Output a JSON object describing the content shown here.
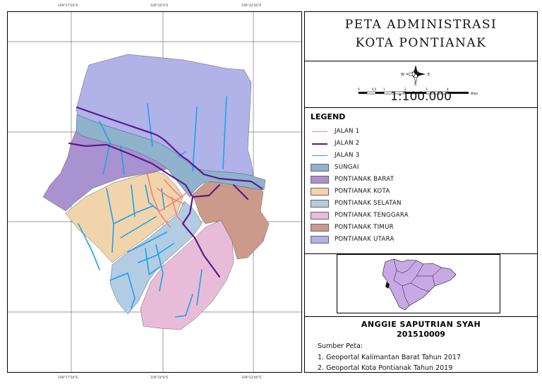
{
  "title": {
    "line1": "PETA ADMINISTRASI",
    "line2": "KOTA PONTIANAK"
  },
  "scale": {
    "ratio": "1:100.000",
    "bar_labels": [
      "0",
      "0,5",
      "1",
      "2",
      "3",
      "4"
    ],
    "bar_unit": "Miles",
    "compass_letters": {
      "n": "N",
      "s": "S",
      "e": "E",
      "w": "W"
    }
  },
  "grid": {
    "top_labels": [
      "109°17'20\"E",
      "109°20'0\"E",
      "109°22'40\"E"
    ],
    "bottom_labels": [
      "109°17'20\"E",
      "109°20'0\"E",
      "109°22'40\"E"
    ]
  },
  "legend": {
    "title": "LEGEND",
    "items": [
      {
        "label": "JALAN 1",
        "kind": "line",
        "color": "#f08080"
      },
      {
        "label": "JALAN 2",
        "kind": "line",
        "color": "#5a1a8c"
      },
      {
        "label": "JALAN 3",
        "kind": "line",
        "color": "#1aa3e8"
      },
      {
        "label": "SUNGAI",
        "kind": "area",
        "color": "#8fb3cc"
      },
      {
        "label": "PONTIANAK BARAT",
        "kind": "area",
        "color": "#a892d0"
      },
      {
        "label": "PONTIANAK KOTA",
        "kind": "area",
        "color": "#f2d4ac"
      },
      {
        "label": "PONTIANAK SELATAN",
        "kind": "area",
        "color": "#b2cce3"
      },
      {
        "label": "PONTIANAK TENGGARA",
        "kind": "area",
        "color": "#e8bcd8"
      },
      {
        "label": "PONTIANAK TIMUR",
        "kind": "area",
        "color": "#cc9a8a"
      },
      {
        "label": "PONTIANAK UTARA",
        "kind": "area",
        "color": "#b0b2e8"
      }
    ]
  },
  "author": {
    "name": "ANGGIE SAPUTRIAN SYAH",
    "id": "201510009"
  },
  "sources": {
    "heading": "Sumber Peta:",
    "items": [
      "1. Geoportal Kalimantan Barat Tahun 2017",
      "2. Geoportal Kota Pontianak Tahun 2019"
    ]
  }
}
